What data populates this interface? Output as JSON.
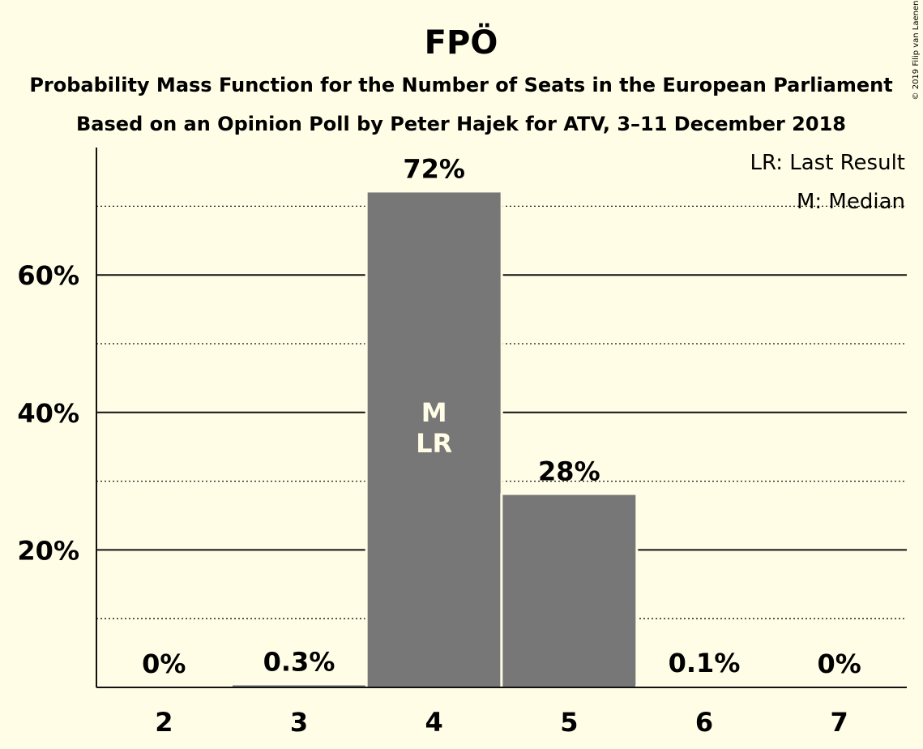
{
  "chart_data": {
    "type": "bar",
    "title": "FPÖ",
    "subtitle_lines": [
      "Probability Mass Function for the Number of Seats in the European Parliament",
      "Based on an Opinion Poll by Peter Hajek for ATV, 3–11 December 2018"
    ],
    "categories": [
      "2",
      "3",
      "4",
      "5",
      "6",
      "7"
    ],
    "values": [
      0,
      0.3,
      72,
      28,
      0.1,
      0
    ],
    "value_labels": [
      "0%",
      "0.3%",
      "72%",
      "28%",
      "0.1%",
      "0%"
    ],
    "bar_markers": [
      {
        "category": "4",
        "lines": [
          "M",
          "LR"
        ]
      }
    ],
    "ylim": [
      0,
      78
    ],
    "y_major_ticks": [
      20,
      40,
      60
    ],
    "y_tick_labels": [
      "20%",
      "40%",
      "60%"
    ],
    "y_minor_ticks": [
      10,
      30,
      50,
      70
    ],
    "legend": [
      "LR: Last Result",
      "M: Median"
    ],
    "legend_position": "top-right",
    "bar_color": "#777777",
    "background_color": "#fffde6",
    "copyright": "© 2019 Filip van Laenen"
  }
}
